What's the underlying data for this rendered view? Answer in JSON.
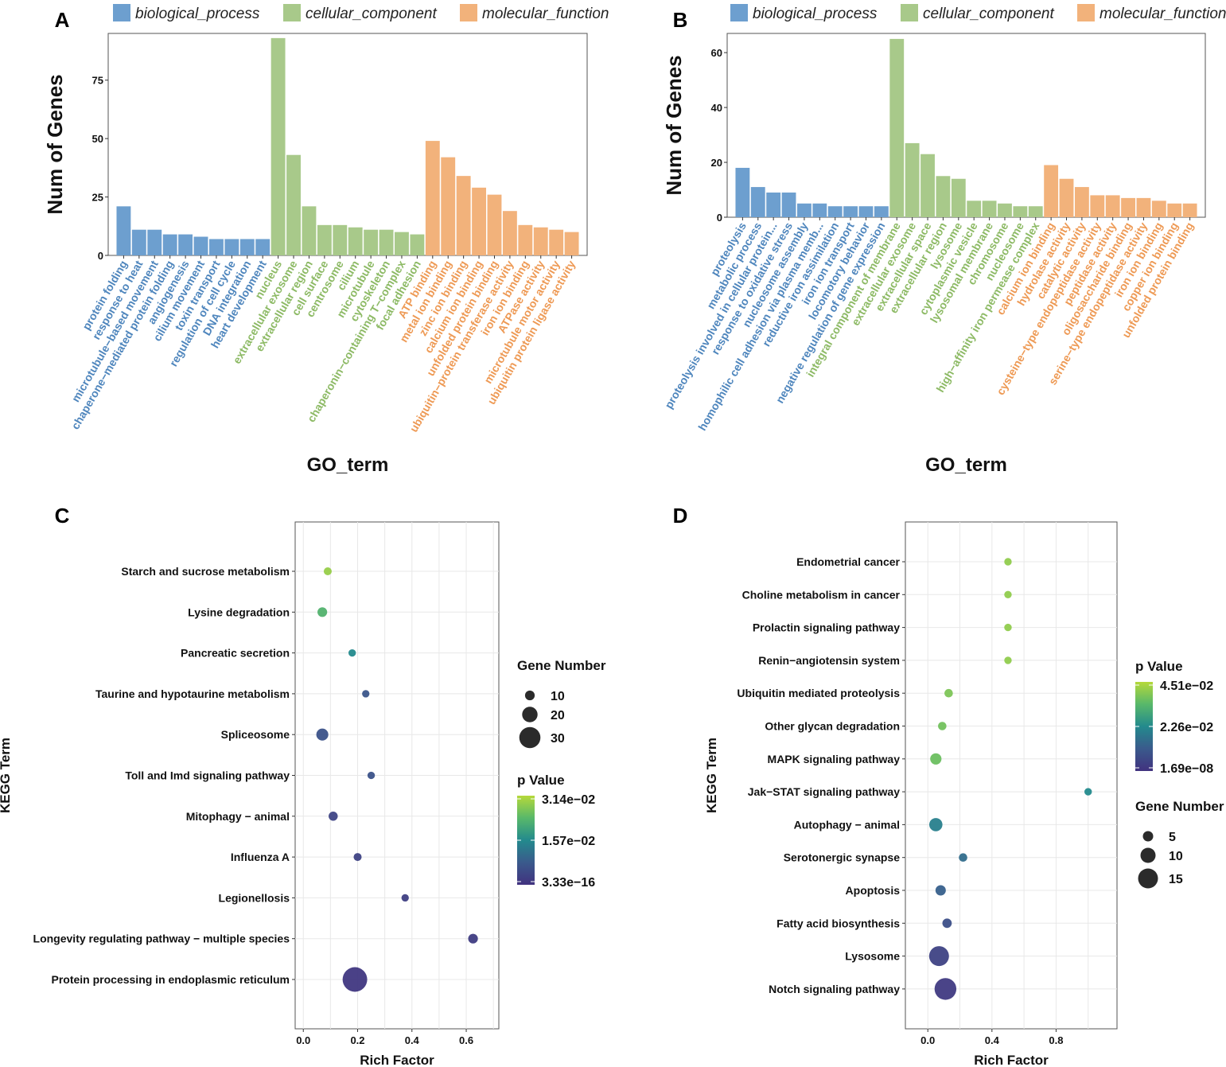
{
  "colors": {
    "biological_process": "#6d9fcf",
    "cellular_component": "#a8c98a",
    "molecular_function": "#f2b27b",
    "bp_text": "#4f86bd",
    "cc_text": "#8dba65",
    "mf_text": "#ee9a55",
    "grid": "#e8e8e8",
    "axis": "#333333"
  },
  "legend_labels": {
    "biological_process": "biological_process",
    "cellular_component": "cellular_component",
    "molecular_function": "molecular_function"
  },
  "chart_data": [
    {
      "panel": "A",
      "type": "bar",
      "ylabel": "Num of Genes",
      "xlabel": "GO_term",
      "ylim": [
        0,
        95
      ],
      "yticks": [
        0,
        25,
        50,
        75
      ],
      "legend": [
        "biological_process",
        "cellular_component",
        "molecular_function"
      ],
      "bars": [
        {
          "label": "protein folding",
          "value": 21,
          "category": "biological_process"
        },
        {
          "label": "response to heat",
          "value": 11,
          "category": "biological_process"
        },
        {
          "label": "microtubule−based movement",
          "value": 11,
          "category": "biological_process"
        },
        {
          "label": "chaperone−mediated protein folding",
          "value": 9,
          "category": "biological_process"
        },
        {
          "label": "angiogenesis",
          "value": 9,
          "category": "biological_process"
        },
        {
          "label": "cilium movement",
          "value": 8,
          "category": "biological_process"
        },
        {
          "label": "toxin transport",
          "value": 7,
          "category": "biological_process"
        },
        {
          "label": "regulation of cell cycle",
          "value": 7,
          "category": "biological_process"
        },
        {
          "label": "DNA integration",
          "value": 7,
          "category": "biological_process"
        },
        {
          "label": "heart development",
          "value": 7,
          "category": "biological_process"
        },
        {
          "label": "nucleus",
          "value": 93,
          "category": "cellular_component"
        },
        {
          "label": "extracellular exosome",
          "value": 43,
          "category": "cellular_component"
        },
        {
          "label": "extracellular region",
          "value": 21,
          "category": "cellular_component"
        },
        {
          "label": "cell surface",
          "value": 13,
          "category": "cellular_component"
        },
        {
          "label": "centrosome",
          "value": 13,
          "category": "cellular_component"
        },
        {
          "label": "cilium",
          "value": 12,
          "category": "cellular_component"
        },
        {
          "label": "microtubule",
          "value": 11,
          "category": "cellular_component"
        },
        {
          "label": "cytoskeleton",
          "value": 11,
          "category": "cellular_component"
        },
        {
          "label": "chaperonin−containing T−complex",
          "value": 10,
          "category": "cellular_component"
        },
        {
          "label": "focal adhesion",
          "value": 9,
          "category": "cellular_component"
        },
        {
          "label": "ATP binding",
          "value": 49,
          "category": "molecular_function"
        },
        {
          "label": "metal ion binding",
          "value": 42,
          "category": "molecular_function"
        },
        {
          "label": "zinc ion binding",
          "value": 34,
          "category": "molecular_function"
        },
        {
          "label": "calcium ion binding",
          "value": 29,
          "category": "molecular_function"
        },
        {
          "label": "unfolded protein binding",
          "value": 26,
          "category": "molecular_function"
        },
        {
          "label": "ubiquitin−protein transferase activity",
          "value": 19,
          "category": "molecular_function"
        },
        {
          "label": "iron ion binding",
          "value": 13,
          "category": "molecular_function"
        },
        {
          "label": "ATPase activity",
          "value": 12,
          "category": "molecular_function"
        },
        {
          "label": "microtubule motor activity",
          "value": 11,
          "category": "molecular_function"
        },
        {
          "label": "ubiquitin protein ligase activity",
          "value": 10,
          "category": "molecular_function"
        }
      ]
    },
    {
      "panel": "B",
      "type": "bar",
      "ylabel": "Num of Genes",
      "xlabel": "GO_term",
      "ylim": [
        0,
        67
      ],
      "yticks": [
        0,
        20,
        40,
        60
      ],
      "legend": [
        "biological_process",
        "cellular_component",
        "molecular_function"
      ],
      "bars": [
        {
          "label": "proteolysis",
          "value": 18,
          "category": "biological_process"
        },
        {
          "label": "metabolic process",
          "value": 11,
          "category": "biological_process"
        },
        {
          "label": "proteolysis involved in cellular protein...",
          "value": 9,
          "category": "biological_process"
        },
        {
          "label": "response to oxidative stress",
          "value": 9,
          "category": "biological_process"
        },
        {
          "label": "nucleosome assembly",
          "value": 5,
          "category": "biological_process"
        },
        {
          "label": "homophilic cell adhesion via plasma memb...",
          "value": 5,
          "category": "biological_process"
        },
        {
          "label": "reductive iron assimilation",
          "value": 4,
          "category": "biological_process"
        },
        {
          "label": "iron ion transport",
          "value": 4,
          "category": "biological_process"
        },
        {
          "label": "locomotory behavior",
          "value": 4,
          "category": "biological_process"
        },
        {
          "label": "negative regulation of gene expression",
          "value": 4,
          "category": "biological_process"
        },
        {
          "label": "integral component of membrane",
          "value": 65,
          "category": "cellular_component"
        },
        {
          "label": "extracellular exosome",
          "value": 27,
          "category": "cellular_component"
        },
        {
          "label": "extracellular space",
          "value": 23,
          "category": "cellular_component"
        },
        {
          "label": "extracellular region",
          "value": 15,
          "category": "cellular_component"
        },
        {
          "label": "lysosome",
          "value": 14,
          "category": "cellular_component"
        },
        {
          "label": "cytoplasmic vesicle",
          "value": 6,
          "category": "cellular_component"
        },
        {
          "label": "lysosomal membrane",
          "value": 6,
          "category": "cellular_component"
        },
        {
          "label": "chromosome",
          "value": 5,
          "category": "cellular_component"
        },
        {
          "label": "nucleosome",
          "value": 4,
          "category": "cellular_component"
        },
        {
          "label": "high−affinity iron permease complex",
          "value": 4,
          "category": "cellular_component"
        },
        {
          "label": "calcium ion binding",
          "value": 19,
          "category": "molecular_function"
        },
        {
          "label": "hydrolase activity",
          "value": 14,
          "category": "molecular_function"
        },
        {
          "label": "catalytic activity",
          "value": 11,
          "category": "molecular_function"
        },
        {
          "label": "cysteine−type endopeptidase activity",
          "value": 8,
          "category": "molecular_function"
        },
        {
          "label": "peptidase activity",
          "value": 8,
          "category": "molecular_function"
        },
        {
          "label": "oligosaccharide binding",
          "value": 7,
          "category": "molecular_function"
        },
        {
          "label": "serine−type endopeptidase activity",
          "value": 7,
          "category": "molecular_function"
        },
        {
          "label": "iron ion binding",
          "value": 6,
          "category": "molecular_function"
        },
        {
          "label": "copper ion binding",
          "value": 5,
          "category": "molecular_function"
        },
        {
          "label": "unfolded protein binding",
          "value": 5,
          "category": "molecular_function"
        }
      ]
    },
    {
      "panel": "C",
      "type": "scatter",
      "ylabel": "KEGG Term",
      "xlabel": "Rich Factor",
      "xlim": [
        -0.03,
        0.72
      ],
      "xticks": [
        "0.0",
        "0.2",
        "0.4",
        "0.6"
      ],
      "size_legend_title": "Gene Number",
      "size_legend": [
        10,
        20,
        30
      ],
      "color_legend_title": "p Value",
      "color_legend_labels": [
        "3.14e−02",
        "1.57e−02",
        "3.33e−16"
      ],
      "points": [
        {
          "term": "Starch and sucrose metabolism",
          "rich_factor": 0.09,
          "genes": 7,
          "p_norm": 0.92
        },
        {
          "term": "Lysine degradation",
          "rich_factor": 0.07,
          "genes": 10,
          "p_norm": 0.72
        },
        {
          "term": "Pancreatic secretion",
          "rich_factor": 0.18,
          "genes": 6,
          "p_norm": 0.5
        },
        {
          "term": "Taurine and hypotaurine metabolism",
          "rich_factor": 0.23,
          "genes": 6,
          "p_norm": 0.22
        },
        {
          "term": "Spliceosome",
          "rich_factor": 0.07,
          "genes": 14,
          "p_norm": 0.2
        },
        {
          "term": "Toll and Imd signaling pathway",
          "rich_factor": 0.25,
          "genes": 6,
          "p_norm": 0.2
        },
        {
          "term": "Mitophagy − animal",
          "rich_factor": 0.11,
          "genes": 9,
          "p_norm": 0.12
        },
        {
          "term": "Influenza A",
          "rich_factor": 0.2,
          "genes": 7,
          "p_norm": 0.1
        },
        {
          "term": "Legionellosis",
          "rich_factor": 0.375,
          "genes": 6,
          "p_norm": 0.08
        },
        {
          "term": "Longevity regulating pathway − multiple species",
          "rich_factor": 0.625,
          "genes": 10,
          "p_norm": 0.06
        },
        {
          "term": "Protein processing in endoplasmic reticulum",
          "rich_factor": 0.19,
          "genes": 36,
          "p_norm": 0.03
        }
      ]
    },
    {
      "panel": "D",
      "type": "scatter",
      "ylabel": "KEGG Term",
      "xlabel": "Rich Factor",
      "xlim": [
        -0.14,
        1.18
      ],
      "xticks": [
        "0.0",
        "0.4",
        "0.8"
      ],
      "color_legend_title": "p Value",
      "color_legend_labels": [
        "4.51e−02",
        "2.26e−02",
        "1.69e−08"
      ],
      "size_legend_title": "Gene Number",
      "size_legend": [
        5,
        10,
        15
      ],
      "points": [
        {
          "term": "Endometrial cancer",
          "rich_factor": 0.5,
          "genes": 2,
          "p_norm": 0.9
        },
        {
          "term": "Choline metabolism in cancer",
          "rich_factor": 0.5,
          "genes": 2,
          "p_norm": 0.9
        },
        {
          "term": "Prolactin signaling pathway",
          "rich_factor": 0.5,
          "genes": 2,
          "p_norm": 0.9
        },
        {
          "term": "Renin−angiotensin system",
          "rich_factor": 0.5,
          "genes": 2,
          "p_norm": 0.9
        },
        {
          "term": "Ubiquitin mediated proteolysis",
          "rich_factor": 0.13,
          "genes": 3,
          "p_norm": 0.85
        },
        {
          "term": "Other glycan degradation",
          "rich_factor": 0.09,
          "genes": 3,
          "p_norm": 0.82
        },
        {
          "term": "MAPK signaling pathway",
          "rich_factor": 0.05,
          "genes": 6,
          "p_norm": 0.8
        },
        {
          "term": "Jak−STAT signaling pathway",
          "rich_factor": 1.0,
          "genes": 2,
          "p_norm": 0.5
        },
        {
          "term": "Autophagy − animal",
          "rich_factor": 0.05,
          "genes": 8,
          "p_norm": 0.45
        },
        {
          "term": "Serotonergic synapse",
          "rich_factor": 0.22,
          "genes": 3,
          "p_norm": 0.35
        },
        {
          "term": "Apoptosis",
          "rich_factor": 0.08,
          "genes": 5,
          "p_norm": 0.28
        },
        {
          "term": "Fatty acid biosynthesis",
          "rich_factor": 0.12,
          "genes": 4,
          "p_norm": 0.18
        },
        {
          "term": "Lysosome",
          "rich_factor": 0.07,
          "genes": 15,
          "p_norm": 0.1
        },
        {
          "term": "Notch signaling pathway",
          "rich_factor": 0.11,
          "genes": 17,
          "p_norm": 0.05
        }
      ]
    }
  ]
}
